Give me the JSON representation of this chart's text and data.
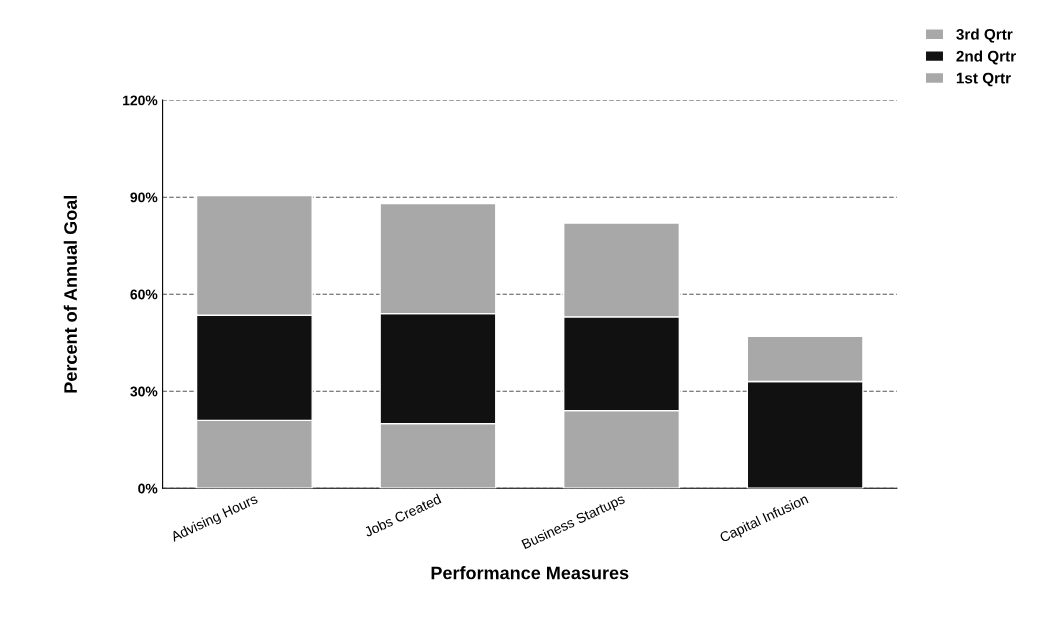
{
  "chart_data": {
    "type": "bar",
    "stacked": true,
    "xlabel": "Performance Measures",
    "ylabel": "Percent of Annual Goal",
    "categories": [
      "Advising Hours",
      "Jobs Created",
      "Business Startups",
      "Capital Infusion"
    ],
    "series": [
      {
        "name": "1st Qrtr",
        "color": "#a8a8a8",
        "values": [
          21,
          20,
          24,
          0
        ]
      },
      {
        "name": "2nd Qrtr",
        "color": "#111111",
        "values": [
          32.5,
          34,
          29,
          33
        ]
      },
      {
        "name": "3rd Qrtr",
        "color": "#a8a8a8",
        "values": [
          37,
          34,
          29,
          14
        ]
      }
    ],
    "ylim": [
      0,
      120
    ],
    "yticks": [
      {
        "value": 0,
        "label": "0%"
      },
      {
        "value": 30,
        "label": "30%"
      },
      {
        "value": 60,
        "label": "60%"
      },
      {
        "value": 90,
        "label": "90%"
      },
      {
        "value": 120,
        "label": "120%"
      }
    ],
    "grid": "y",
    "legend": "top right"
  }
}
